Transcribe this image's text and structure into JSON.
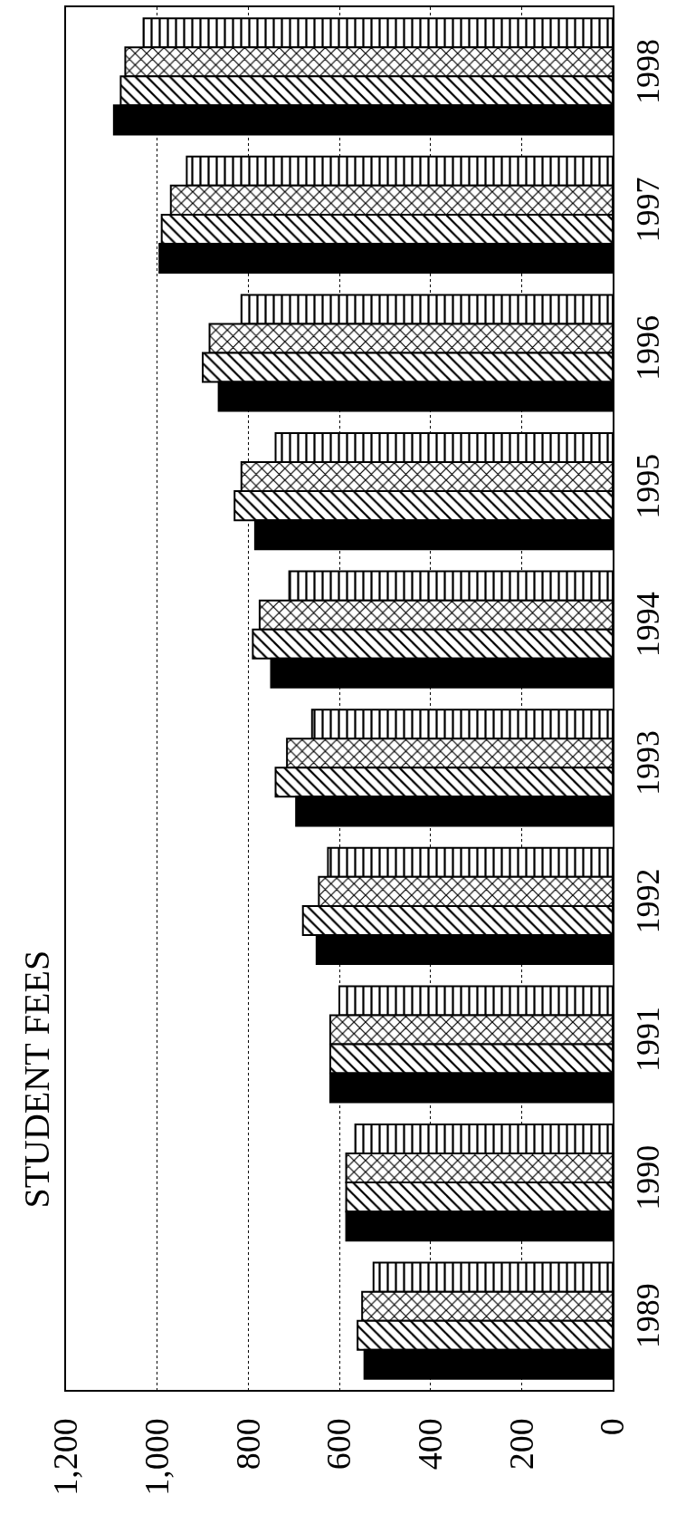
{
  "chart_data": {
    "type": "bar",
    "orientation": "horizontal",
    "title": "STUDENT FEES",
    "categories": [
      "1998",
      "1997",
      "1996",
      "1995",
      "1994",
      "1993",
      "1992",
      "1991",
      "1990",
      "1989"
    ],
    "series": [
      {
        "color": "#000000",
        "values": [
          1030,
          935,
          815,
          740,
          710,
          660,
          625,
          600,
          565,
          525
        ]
      },
      {
        "color": "#000000",
        "values": [
          1070,
          970,
          885,
          815,
          775,
          715,
          645,
          620,
          585,
          550
        ]
      },
      {
        "color": "#000000",
        "values": [
          1080,
          990,
          900,
          830,
          790,
          740,
          680,
          620,
          585,
          560
        ]
      },
      {
        "color": "#000000",
        "values": [
          1095,
          995,
          865,
          785,
          750,
          695,
          650,
          620,
          585,
          545
        ]
      }
    ],
    "xlim": [
      1200,
      0
    ],
    "xticks": [
      {
        "value": 1200,
        "label": "1,200"
      },
      {
        "value": 1000,
        "label": "1,000"
      },
      800,
      600,
      400,
      200,
      0
    ],
    "grid": "x"
  }
}
